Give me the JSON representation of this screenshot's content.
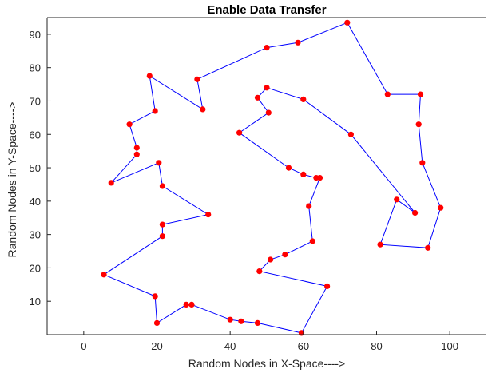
{
  "chart_data": {
    "type": "line",
    "title": "Enable Data Transfer",
    "xlabel": "Random Nodes in X-Space---->",
    "ylabel": "Random Nodes in Y-Space---->",
    "xlim": [
      -10,
      110
    ],
    "ylim": [
      0,
      95
    ],
    "xticks": [
      0,
      20,
      40,
      60,
      80,
      100
    ],
    "yticks": [
      10,
      20,
      30,
      40,
      50,
      60,
      70,
      80,
      90
    ],
    "grid": false,
    "line_color": "#0000ff",
    "marker_color": "#ff0000",
    "marker": "circle",
    "x": [
      72,
      83,
      92,
      91.5,
      92.5,
      97.5,
      94,
      81,
      85.5,
      90.5,
      73,
      60,
      50,
      47.5,
      50.5,
      42.5,
      56,
      60,
      63.5,
      64.5,
      61.5,
      62.5,
      55,
      51,
      48,
      66.5,
      59.5,
      47.5,
      43,
      40,
      29.5,
      28,
      20,
      19.5,
      5.5,
      21.5,
      21.5,
      34,
      21.5,
      20.5,
      7.5,
      14.5,
      14.5,
      12.5,
      19.5,
      18,
      32.5,
      31,
      50,
      58.5,
      72
    ],
    "y": [
      93.5,
      72,
      72,
      63,
      51.5,
      38,
      26,
      27,
      40.5,
      36.5,
      60,
      70.5,
      74,
      71,
      66.5,
      60.5,
      50,
      48,
      47,
      47,
      38.5,
      28,
      24,
      22.5,
      19,
      14.5,
      0.5,
      3.5,
      4,
      4.5,
      9,
      9,
      3.5,
      11.5,
      18,
      29.5,
      33,
      36,
      44.5,
      51.5,
      45.5,
      54,
      56,
      63,
      67,
      77.5,
      67.5,
      76.5,
      86,
      87.5,
      93.5
    ]
  }
}
